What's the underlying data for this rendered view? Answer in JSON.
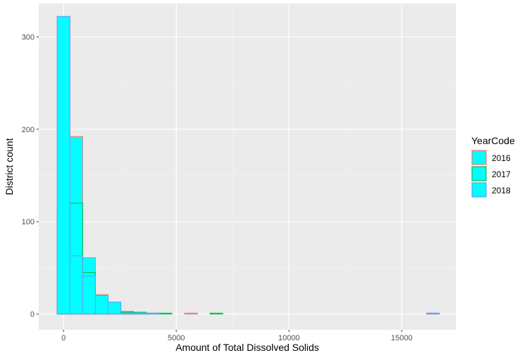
{
  "chart_data": {
    "type": "bar",
    "title": "",
    "xlabel": "Amount of Total Dissolved Solids",
    "ylabel": "District count",
    "xlim": [
      -1100,
      17400
    ],
    "ylim": [
      -17,
      336
    ],
    "x_ticks": [
      0,
      5000,
      10000,
      15000
    ],
    "x_tick_labels": [
      "0",
      "5000",
      "10000",
      "15000"
    ],
    "y_ticks": [
      0,
      100,
      200,
      300
    ],
    "y_tick_labels": [
      "0",
      "100",
      "200",
      "300"
    ],
    "bin_width": 565,
    "bin_centers": [
      0,
      565,
      1130,
      1695,
      2260,
      2825,
      3390,
      3955,
      4520,
      5085,
      5650,
      6215,
      6780,
      7345,
      7910,
      8475,
      9040,
      9605,
      10170,
      10735,
      11300,
      11865,
      12430,
      12995,
      13560,
      14125,
      14690,
      15255,
      15820,
      16385
    ],
    "series": [
      {
        "name": "2016",
        "values": [
          322,
          192,
          61,
          21,
          10,
          3,
          1,
          0,
          0,
          0,
          1,
          0,
          0,
          0,
          0,
          0,
          0,
          0,
          0,
          0,
          0,
          0,
          0,
          0,
          0,
          0,
          0,
          0,
          0,
          1
        ]
      },
      {
        "name": "2017",
        "values": [
          110,
          120,
          45,
          18,
          11,
          2,
          2,
          1,
          1,
          0,
          0,
          0,
          1,
          0,
          0,
          0,
          0,
          0,
          0,
          0,
          0,
          0,
          0,
          0,
          0,
          0,
          0,
          0,
          0,
          0
        ]
      },
      {
        "name": "2018",
        "values": [
          322,
          63,
          41,
          20,
          13,
          1,
          1,
          1,
          0,
          0,
          0,
          0,
          0,
          0,
          0,
          0,
          0,
          0,
          0,
          0,
          0,
          0,
          0,
          0,
          0,
          0,
          0,
          0,
          0,
          1
        ]
      }
    ],
    "fill_color": "#00FFFF",
    "series_colors": [
      "#F8766D",
      "#00BA38",
      "#619CFF"
    ],
    "panel_background": "#EBEBEB",
    "grid": true,
    "legend": {
      "title": "YearCode",
      "placement": "right"
    }
  }
}
